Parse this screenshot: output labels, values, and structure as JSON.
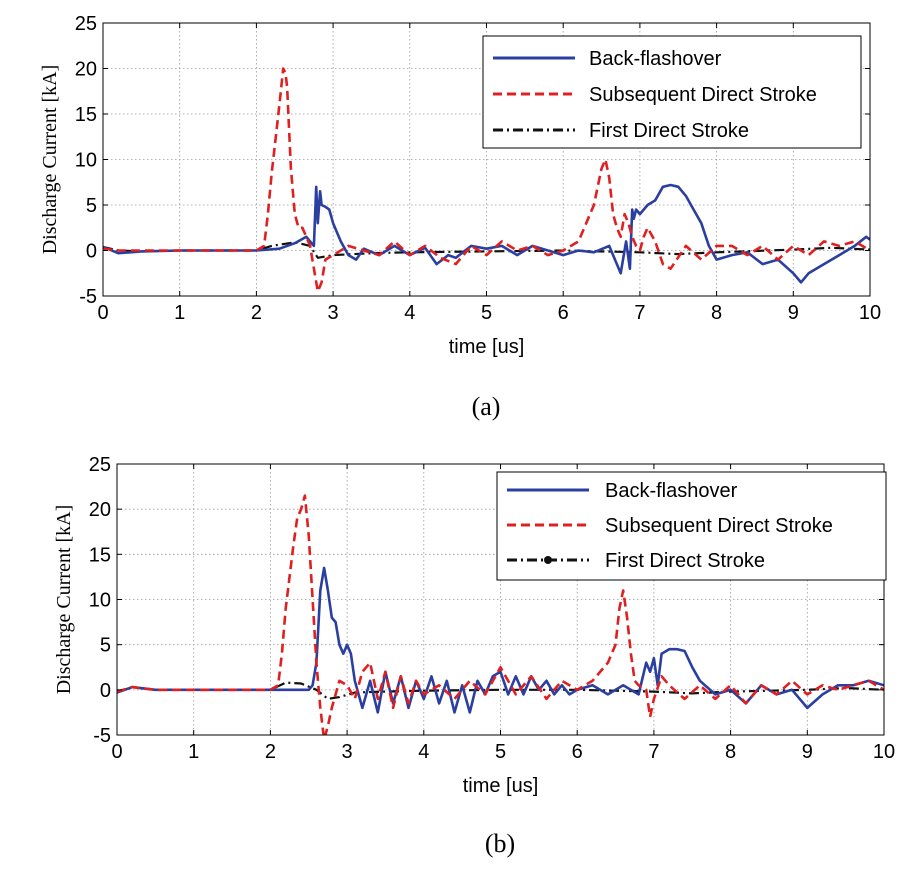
{
  "chart_data": [
    {
      "type": "line",
      "panel": "a",
      "caption": "(a)",
      "xlabel": "time [us]",
      "ylabel": "Discharge Current [kA]",
      "xlim": [
        0,
        10
      ],
      "ylim": [
        -5,
        25
      ],
      "xticks": [
        0,
        1,
        2,
        3,
        4,
        5,
        6,
        7,
        8,
        9,
        10
      ],
      "yticks": [
        -5,
        0,
        5,
        10,
        15,
        20,
        25
      ],
      "grid": true,
      "legend_position": "top-right",
      "series": [
        {
          "name": "Back-flashover",
          "color": "#2b3fa0",
          "style": "solid",
          "x": [
            0,
            0.2,
            0.5,
            1,
            1.5,
            2,
            2.3,
            2.5,
            2.65,
            2.75,
            2.78,
            2.8,
            2.83,
            2.85,
            2.9,
            2.95,
            3.0,
            3.05,
            3.1,
            3.2,
            3.3,
            3.4,
            3.6,
            3.8,
            4.0,
            4.2,
            4.35,
            4.5,
            4.6,
            4.8,
            5.0,
            5.2,
            5.4,
            5.6,
            5.8,
            6.0,
            6.2,
            6.4,
            6.6,
            6.75,
            6.82,
            6.87,
            6.9,
            6.92,
            6.95,
            7.0,
            7.1,
            7.2,
            7.3,
            7.4,
            7.5,
            7.6,
            7.7,
            7.8,
            7.9,
            8.0,
            8.2,
            8.4,
            8.6,
            8.8,
            9.0,
            9.1,
            9.2,
            9.4,
            9.6,
            9.8,
            9.95,
            10
          ],
          "y": [
            0.4,
            -0.3,
            -0.1,
            0,
            0,
            0,
            0.2,
            0.8,
            1.5,
            0.5,
            7.0,
            3.0,
            6.5,
            5.0,
            4.8,
            4.5,
            3.0,
            2.0,
            1.0,
            -0.5,
            -1.0,
            0.2,
            -0.5,
            0.5,
            -0.5,
            0.3,
            -1.5,
            -0.5,
            -0.8,
            0.5,
            0.2,
            0.5,
            -0.5,
            0.5,
            0,
            -0.5,
            0,
            -0.2,
            0.5,
            -2.5,
            1.0,
            -2.0,
            4.5,
            3.5,
            4.5,
            4.0,
            5.0,
            5.5,
            7.0,
            7.2,
            7.0,
            6.0,
            4.5,
            3.0,
            0.5,
            -1.0,
            -0.5,
            -0.2,
            -1.5,
            -1.0,
            -2.5,
            -3.5,
            -2.5,
            -1.5,
            -0.5,
            0.5,
            1.5,
            1.2
          ]
        },
        {
          "name": "Subsequent Direct Stroke",
          "color": "#e02020",
          "style": "dashed",
          "x": [
            0,
            0.2,
            0.5,
            1,
            1.5,
            2.0,
            2.1,
            2.15,
            2.2,
            2.3,
            2.35,
            2.38,
            2.4,
            2.45,
            2.5,
            2.55,
            2.6,
            2.65,
            2.7,
            2.75,
            2.8,
            2.85,
            2.9,
            3.0,
            3.2,
            3.4,
            3.6,
            3.8,
            4.0,
            4.2,
            4.4,
            4.6,
            4.8,
            5.0,
            5.2,
            5.4,
            5.6,
            5.8,
            6.0,
            6.2,
            6.3,
            6.4,
            6.5,
            6.55,
            6.6,
            6.65,
            6.7,
            6.75,
            6.8,
            6.85,
            6.9,
            6.95,
            7.0,
            7.05,
            7.1,
            7.2,
            7.3,
            7.4,
            7.6,
            7.8,
            8.0,
            8.2,
            8.4,
            8.6,
            8.8,
            9.0,
            9.2,
            9.4,
            9.6,
            9.8,
            10
          ],
          "y": [
            0.2,
            0,
            0,
            0,
            0,
            0,
            0.5,
            4.0,
            8.5,
            16.0,
            20.0,
            19.5,
            18.0,
            9.0,
            4.0,
            2.5,
            2.5,
            1.5,
            0.5,
            -2.0,
            -4.5,
            -3.5,
            -1.0,
            -0.5,
            0.5,
            0,
            -0.5,
            1.0,
            -0.5,
            0.5,
            -0.8,
            -1.5,
            0.5,
            -0.5,
            1.0,
            0,
            0.5,
            -0.5,
            0,
            1.0,
            3.0,
            5.0,
            9.0,
            10.0,
            8.0,
            4.0,
            2.5,
            1.5,
            4.0,
            3.0,
            1.5,
            0.5,
            0,
            1.5,
            2.5,
            1.0,
            -1.5,
            -2.0,
            0.5,
            -1.0,
            0.5,
            0.5,
            -0.5,
            0.5,
            -1.0,
            0.5,
            -0.5,
            1.0,
            0.5,
            1.0,
            0
          ]
        },
        {
          "name": "First Direct Stroke",
          "color": "#111111",
          "style": "dashdot",
          "x": [
            0,
            0.2,
            0.5,
            1,
            1.5,
            2.0,
            2.2,
            2.5,
            2.7,
            2.8,
            3.0,
            3.5,
            4.0,
            5.0,
            6.0,
            7.0,
            7.5,
            8.0,
            9.0,
            9.5,
            10
          ],
          "y": [
            0.4,
            0,
            -0.1,
            0,
            0,
            0,
            0.5,
            0.9,
            0.5,
            -0.8,
            -0.5,
            -0.3,
            -0.2,
            -0.1,
            0,
            -0.2,
            -0.4,
            -0.2,
            0.1,
            0.3,
            0.1
          ]
        }
      ]
    },
    {
      "type": "line",
      "panel": "b",
      "caption": "(b)",
      "xlabel": "time [us]",
      "ylabel": "Discharge Current [kA]",
      "xlim": [
        0,
        10
      ],
      "ylim": [
        -5,
        25
      ],
      "xticks": [
        0,
        1,
        2,
        3,
        4,
        5,
        6,
        7,
        8,
        9,
        10
      ],
      "yticks": [
        -5,
        0,
        5,
        10,
        15,
        20,
        25
      ],
      "grid": true,
      "legend_position": "top-right",
      "series": [
        {
          "name": "Back-flashover",
          "color": "#2b3fa0",
          "style": "solid",
          "x": [
            0,
            0.2,
            0.5,
            1,
            1.5,
            2.0,
            2.3,
            2.5,
            2.55,
            2.6,
            2.65,
            2.7,
            2.75,
            2.8,
            2.85,
            2.9,
            2.95,
            3.0,
            3.05,
            3.1,
            3.2,
            3.3,
            3.4,
            3.5,
            3.6,
            3.7,
            3.8,
            3.9,
            4.0,
            4.1,
            4.2,
            4.3,
            4.4,
            4.5,
            4.6,
            4.7,
            4.8,
            4.9,
            5.0,
            5.1,
            5.2,
            5.3,
            5.4,
            5.5,
            5.6,
            5.7,
            5.8,
            5.9,
            6.0,
            6.2,
            6.4,
            6.6,
            6.8,
            6.9,
            6.95,
            7.0,
            7.05,
            7.1,
            7.2,
            7.3,
            7.4,
            7.5,
            7.6,
            7.8,
            8.0,
            8.2,
            8.4,
            8.6,
            8.8,
            9.0,
            9.2,
            9.4,
            9.6,
            9.8,
            10
          ],
          "y": [
            -0.3,
            0.3,
            0,
            0,
            0,
            0,
            0,
            0,
            0.5,
            3.0,
            11.0,
            13.5,
            11.0,
            8.0,
            7.5,
            5.0,
            4.0,
            5.0,
            4.0,
            1.0,
            -2.0,
            1.0,
            -2.5,
            2.0,
            -1.5,
            1.5,
            -2.0,
            1.0,
            -1.0,
            1.5,
            -1.5,
            1.0,
            -2.5,
            0.5,
            -2.5,
            1.0,
            -0.5,
            1.5,
            2.0,
            -0.5,
            1.5,
            -0.5,
            1.5,
            0,
            1.0,
            -0.5,
            0.5,
            -0.5,
            0,
            0.5,
            -0.5,
            0.5,
            -0.5,
            3.0,
            2.0,
            3.5,
            0.5,
            4.0,
            4.5,
            4.5,
            4.3,
            2.5,
            1.0,
            -0.5,
            0,
            -1.5,
            0.5,
            -0.5,
            0,
            -2.0,
            -0.5,
            0.5,
            0.5,
            1.0,
            0.5
          ]
        },
        {
          "name": "Subsequent Direct Stroke",
          "color": "#e02020",
          "style": "dashed",
          "x": [
            0,
            0.2,
            0.5,
            1,
            1.5,
            2.0,
            2.1,
            2.15,
            2.2,
            2.3,
            2.35,
            2.4,
            2.45,
            2.5,
            2.55,
            2.6,
            2.65,
            2.7,
            2.75,
            2.8,
            2.9,
            3.0,
            3.1,
            3.2,
            3.3,
            3.4,
            3.5,
            3.6,
            3.7,
            3.8,
            3.9,
            4.0,
            4.2,
            4.4,
            4.6,
            4.8,
            5.0,
            5.2,
            5.4,
            5.6,
            5.8,
            6.0,
            6.2,
            6.4,
            6.5,
            6.55,
            6.6,
            6.65,
            6.7,
            6.75,
            6.8,
            6.9,
            6.95,
            7.0,
            7.1,
            7.2,
            7.4,
            7.6,
            7.8,
            8.0,
            8.2,
            8.4,
            8.6,
            8.8,
            9.0,
            9.2,
            9.4,
            9.6,
            9.8,
            10
          ],
          "y": [
            -0.2,
            0.3,
            0,
            0,
            0,
            0,
            0.5,
            4.0,
            9.0,
            16.0,
            19.0,
            20.0,
            21.5,
            17.0,
            10.0,
            3.0,
            -2.0,
            -5.5,
            -4.0,
            -2.0,
            1.0,
            0.5,
            -1.0,
            2.0,
            3.0,
            -1.0,
            2.0,
            -2.0,
            1.5,
            -1.5,
            1.0,
            -0.5,
            0.5,
            -1.0,
            1.0,
            -0.5,
            2.5,
            -0.5,
            1.5,
            -1.0,
            1.0,
            0,
            1.0,
            3.0,
            5.0,
            9.0,
            11.0,
            8.0,
            4.0,
            1.0,
            0.5,
            0,
            -3.0,
            -1.0,
            1.5,
            0.5,
            -1.0,
            0.5,
            -1.0,
            0.5,
            -1.5,
            0.5,
            -0.5,
            1.0,
            -0.5,
            0.5,
            0,
            0.5,
            1.0,
            0
          ]
        },
        {
          "name": "First Direct Stroke",
          "color": "#111111",
          "style": "dashdot-marker",
          "x": [
            0,
            0.2,
            0.5,
            1,
            1.5,
            2.0,
            2.2,
            2.4,
            2.6,
            2.75,
            2.9,
            3.1,
            3.5,
            4.0,
            5.0,
            6.0,
            7.0,
            7.5,
            8.0,
            9.0,
            9.5,
            10
          ],
          "y": [
            -0.3,
            0.3,
            0,
            0,
            0,
            0,
            0.8,
            0.7,
            0,
            -1.0,
            -0.8,
            -0.3,
            -0.2,
            -0.1,
            0,
            0,
            -0.2,
            -0.4,
            -0.2,
            0,
            0.2,
            0
          ]
        }
      ]
    }
  ]
}
